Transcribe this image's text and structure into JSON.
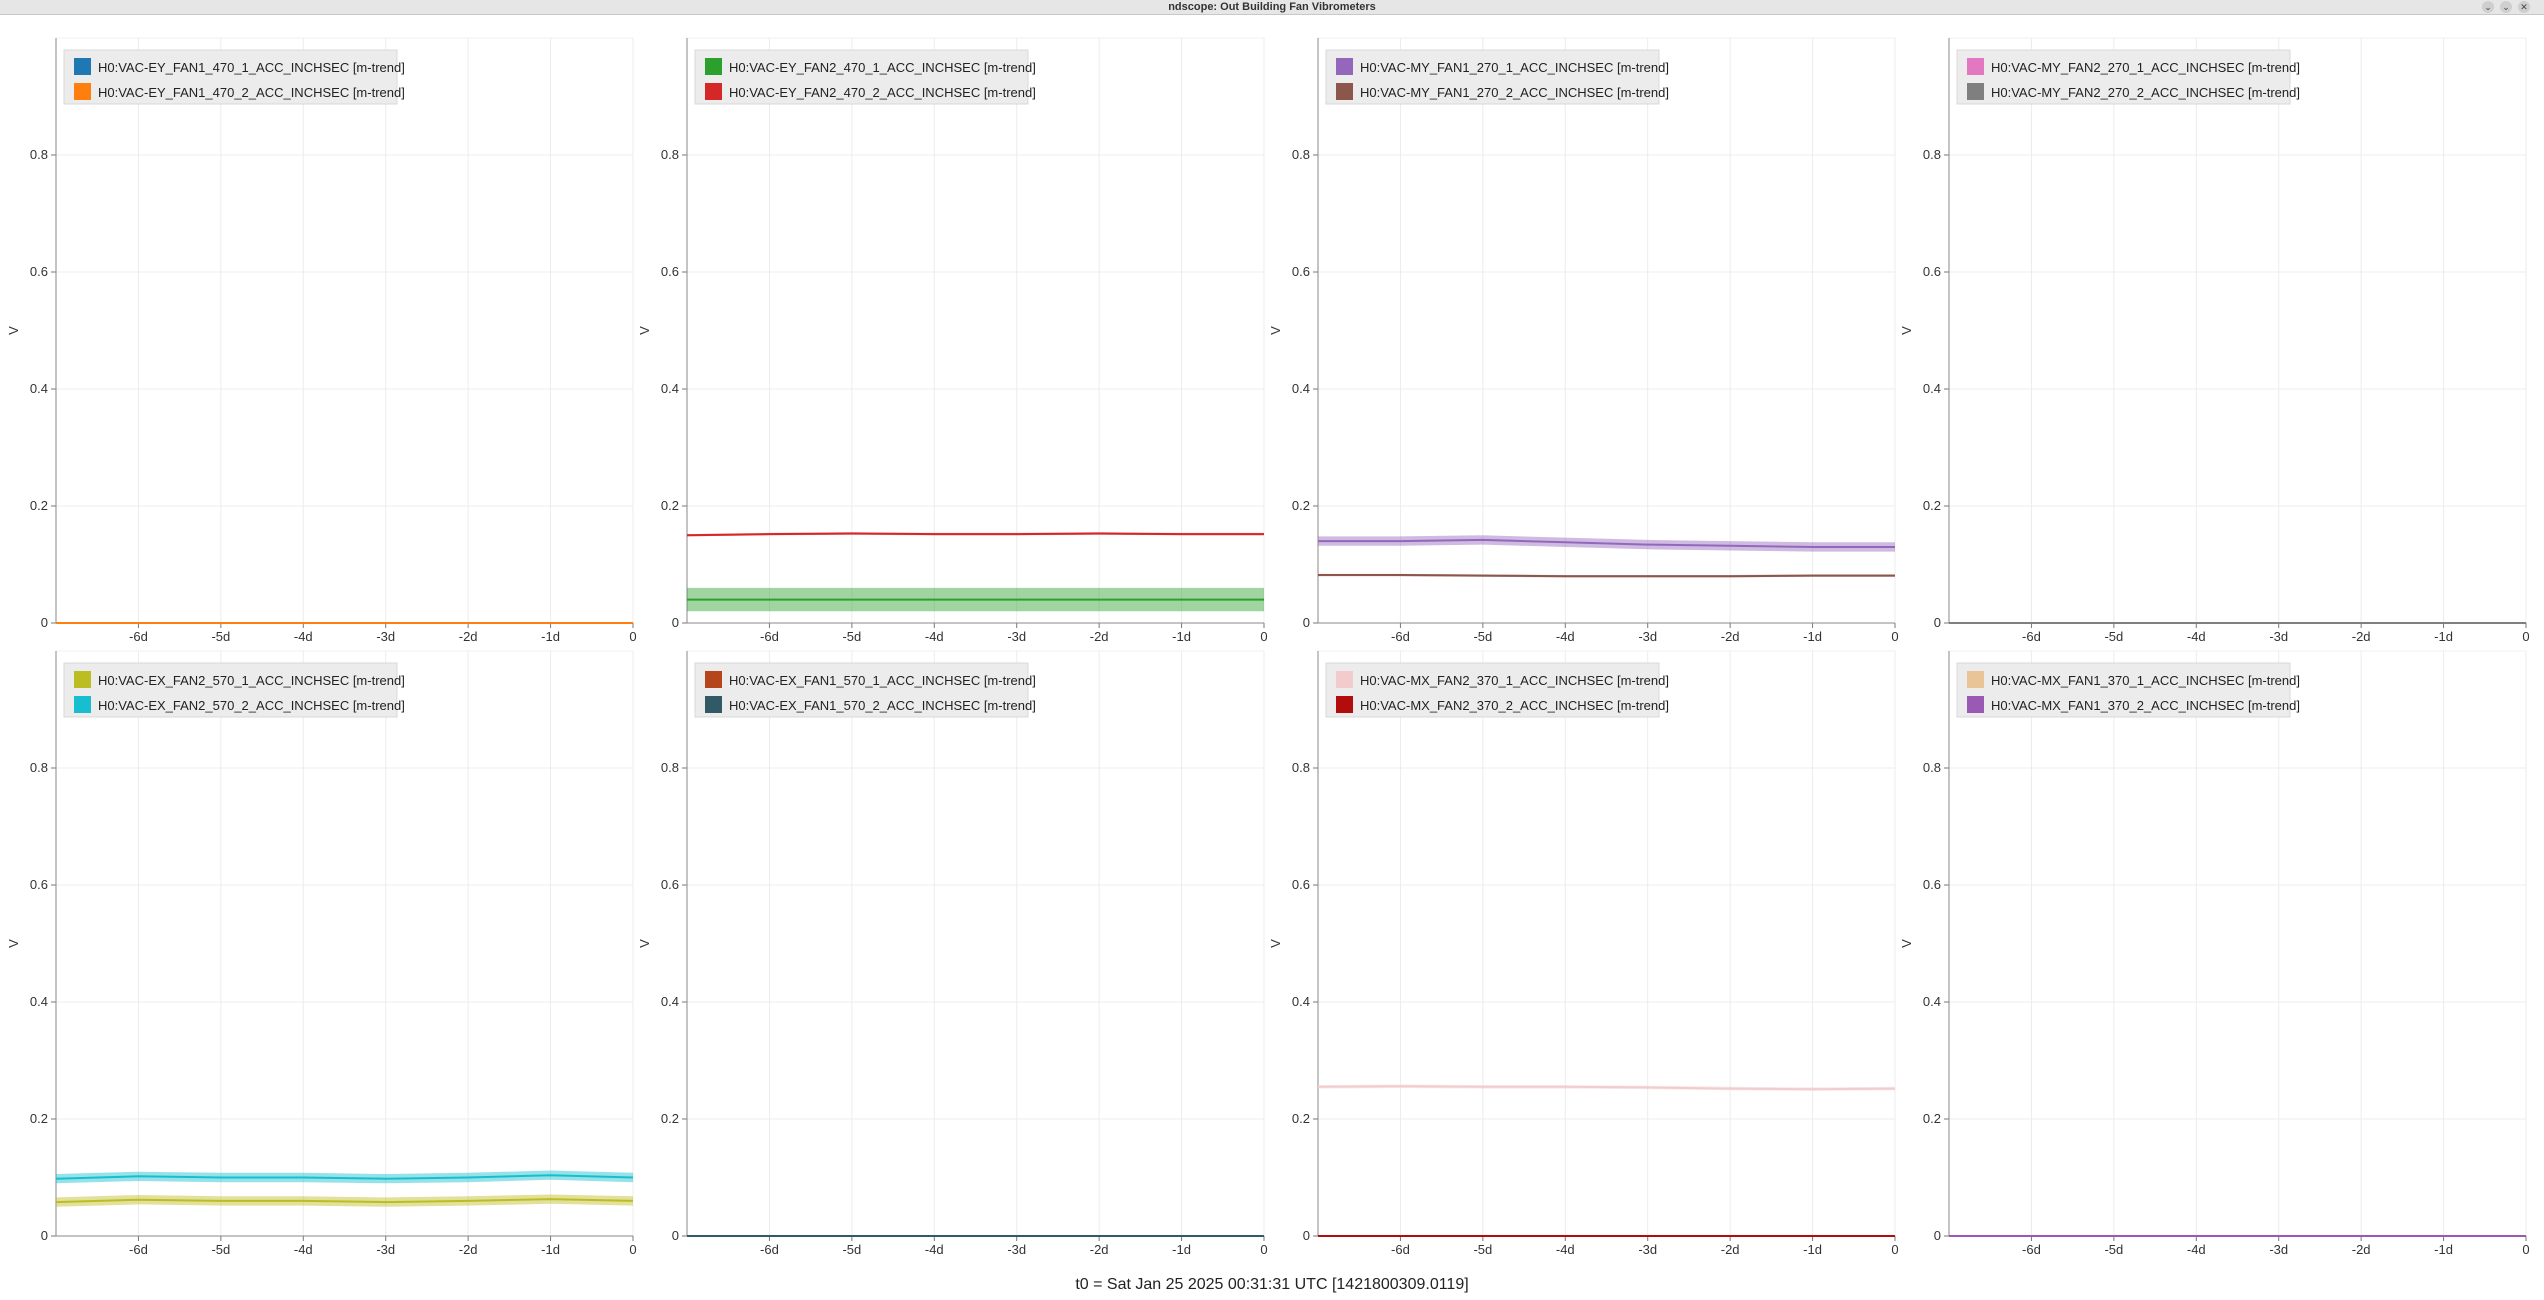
{
  "window": {
    "title": "ndscope: Out Building Fan Vibrometers",
    "minimize_glyph": "⌄",
    "close_glyph": "✕"
  },
  "footer": {
    "t0": "t0 = Sat Jan 25 2025 00:31:31 UTC [1421800309.0119]"
  },
  "chart_data": [
    {
      "type": "line",
      "ylabel": "V",
      "ylim": [
        0,
        1
      ],
      "xlim": [
        -7,
        0
      ],
      "xticks": [
        "-6d",
        "-5d",
        "-4d",
        "-3d",
        "-2d",
        "-1d",
        "0"
      ],
      "yticks": [
        "0",
        "0.2",
        "0.4",
        "0.6",
        "0.8"
      ],
      "grid": true,
      "legend": "top-left",
      "series": [
        {
          "name": "H0:VAC-EY_FAN1_470_1_ACC_INCHSEC [m-trend]",
          "color": "#1f77b4",
          "values": [
            0.0,
            0.0,
            0.0,
            0.0,
            0.0,
            0.0,
            0.0,
            0.0
          ],
          "band": 0.0
        },
        {
          "name": "H0:VAC-EY_FAN1_470_2_ACC_INCHSEC [m-trend]",
          "color": "#ff7f0e",
          "values": [
            0.0,
            0.0,
            0.0,
            0.0,
            0.0,
            0.0,
            0.0,
            0.0
          ],
          "band": 0.0
        }
      ]
    },
    {
      "type": "line",
      "ylabel": "V",
      "ylim": [
        0,
        1
      ],
      "xlim": [
        -7,
        0
      ],
      "xticks": [
        "-6d",
        "-5d",
        "-4d",
        "-3d",
        "-2d",
        "-1d",
        "0"
      ],
      "yticks": [
        "0",
        "0.2",
        "0.4",
        "0.6",
        "0.8"
      ],
      "grid": true,
      "legend": "top-left",
      "series": [
        {
          "name": "H0:VAC-EY_FAN2_470_1_ACC_INCHSEC [m-trend]",
          "color": "#2ca02c",
          "values": [
            0.04,
            0.04,
            0.04,
            0.04,
            0.04,
            0.04,
            0.04,
            0.04
          ],
          "band": 0.02
        },
        {
          "name": "H0:VAC-EY_FAN2_470_2_ACC_INCHSEC [m-trend]",
          "color": "#d62728",
          "values": [
            0.15,
            0.152,
            0.153,
            0.152,
            0.152,
            0.153,
            0.152,
            0.152
          ],
          "band": 0.002
        }
      ]
    },
    {
      "type": "line",
      "ylabel": "V",
      "ylim": [
        0,
        1
      ],
      "xlim": [
        -7,
        0
      ],
      "xticks": [
        "-6d",
        "-5d",
        "-4d",
        "-3d",
        "-2d",
        "-1d",
        "0"
      ],
      "yticks": [
        "0",
        "0.2",
        "0.4",
        "0.6",
        "0.8"
      ],
      "grid": true,
      "legend": "top-left",
      "series": [
        {
          "name": "H0:VAC-MY_FAN1_270_1_ACC_INCHSEC [m-trend]",
          "color": "#9467bd",
          "values": [
            0.14,
            0.14,
            0.142,
            0.138,
            0.134,
            0.132,
            0.13,
            0.13
          ],
          "band": 0.008
        },
        {
          "name": "H0:VAC-MY_FAN1_270_2_ACC_INCHSEC [m-trend]",
          "color": "#8c564b",
          "values": [
            0.082,
            0.082,
            0.081,
            0.08,
            0.08,
            0.08,
            0.081,
            0.081
          ],
          "band": 0.002
        }
      ]
    },
    {
      "type": "line",
      "ylabel": "V",
      "ylim": [
        0,
        1
      ],
      "xlim": [
        -7,
        0
      ],
      "xticks": [
        "-6d",
        "-5d",
        "-4d",
        "-3d",
        "-2d",
        "-1d",
        "0"
      ],
      "yticks": [
        "0",
        "0.2",
        "0.4",
        "0.6",
        "0.8"
      ],
      "grid": true,
      "legend": "top-left",
      "series": [
        {
          "name": "H0:VAC-MY_FAN2_270_1_ACC_INCHSEC [m-trend]",
          "color": "#e377c2",
          "values": [
            0.0,
            0.0,
            0.0,
            0.0,
            0.0,
            0.0,
            0.0,
            0.0
          ],
          "band": 0.0
        },
        {
          "name": "H0:VAC-MY_FAN2_270_2_ACC_INCHSEC [m-trend]",
          "color": "#7f7f7f",
          "values": [
            0.0,
            0.0,
            0.0,
            0.0,
            0.0,
            0.0,
            0.0,
            0.0
          ],
          "band": 0.0
        }
      ]
    },
    {
      "type": "line",
      "ylabel": "V",
      "ylim": [
        0,
        1
      ],
      "xlim": [
        -7,
        0
      ],
      "xticks": [
        "-6d",
        "-5d",
        "-4d",
        "-3d",
        "-2d",
        "-1d",
        "0"
      ],
      "yticks": [
        "0",
        "0.2",
        "0.4",
        "0.6",
        "0.8"
      ],
      "grid": true,
      "legend": "top-left",
      "series": [
        {
          "name": "H0:VAC-EX_FAN2_570_1_ACC_INCHSEC [m-trend]",
          "color": "#bcbd22",
          "values": [
            0.058,
            0.062,
            0.06,
            0.06,
            0.058,
            0.06,
            0.063,
            0.06
          ],
          "band": 0.008
        },
        {
          "name": "H0:VAC-EX_FAN2_570_2_ACC_INCHSEC [m-trend]",
          "color": "#17becf",
          "values": [
            0.098,
            0.102,
            0.1,
            0.1,
            0.098,
            0.1,
            0.104,
            0.1
          ],
          "band": 0.008
        }
      ]
    },
    {
      "type": "line",
      "ylabel": "V",
      "ylim": [
        0,
        1
      ],
      "xlim": [
        -7,
        0
      ],
      "xticks": [
        "-6d",
        "-5d",
        "-4d",
        "-3d",
        "-2d",
        "-1d",
        "0"
      ],
      "yticks": [
        "0",
        "0.2",
        "0.4",
        "0.6",
        "0.8"
      ],
      "grid": true,
      "legend": "top-left",
      "series": [
        {
          "name": "H0:VAC-EX_FAN1_570_1_ACC_INCHSEC [m-trend]",
          "color": "#b5451b",
          "values": [
            0.0,
            0.0,
            0.0,
            0.0,
            0.0,
            0.0,
            0.0,
            0.0
          ],
          "band": 0.0
        },
        {
          "name": "H0:VAC-EX_FAN1_570_2_ACC_INCHSEC [m-trend]",
          "color": "#325a66",
          "values": [
            0.0,
            0.0,
            0.0,
            0.0,
            0.0,
            0.0,
            0.0,
            0.0
          ],
          "band": 0.0
        }
      ]
    },
    {
      "type": "line",
      "ylabel": "V",
      "ylim": [
        0,
        1
      ],
      "xlim": [
        -7,
        0
      ],
      "xticks": [
        "-6d",
        "-5d",
        "-4d",
        "-3d",
        "-2d",
        "-1d",
        "0"
      ],
      "yticks": [
        "0",
        "0.2",
        "0.4",
        "0.6",
        "0.8"
      ],
      "grid": true,
      "legend": "top-left",
      "series": [
        {
          "name": "H0:VAC-MX_FAN2_370_1_ACC_INCHSEC [m-trend]",
          "color": "#f2cccc",
          "values": [
            0.255,
            0.256,
            0.255,
            0.255,
            0.254,
            0.252,
            0.251,
            0.252
          ],
          "band": 0.003
        },
        {
          "name": "H0:VAC-MX_FAN2_370_2_ACC_INCHSEC [m-trend]",
          "color": "#b20c0c",
          "values": [
            0.0,
            0.0,
            0.0,
            0.0,
            0.0,
            0.0,
            0.0,
            0.0
          ],
          "band": 0.0
        }
      ]
    },
    {
      "type": "line",
      "ylabel": "V",
      "ylim": [
        0,
        1
      ],
      "xlim": [
        -7,
        0
      ],
      "xticks": [
        "-6d",
        "-5d",
        "-4d",
        "-3d",
        "-2d",
        "-1d",
        "0"
      ],
      "yticks": [
        "0",
        "0.2",
        "0.4",
        "0.6",
        "0.8"
      ],
      "grid": true,
      "legend": "top-left",
      "series": [
        {
          "name": "H0:VAC-MX_FAN1_370_1_ACC_INCHSEC [m-trend]",
          "color": "#e8c497",
          "values": [
            0.0,
            0.0,
            0.0,
            0.0,
            0.0,
            0.0,
            0.0,
            0.0
          ],
          "band": 0.0
        },
        {
          "name": "H0:VAC-MX_FAN1_370_2_ACC_INCHSEC [m-trend]",
          "color": "#9b59b6",
          "values": [
            0.0,
            0.0,
            0.0,
            0.0,
            0.0,
            0.0,
            0.0,
            0.0
          ],
          "band": 0.0
        }
      ]
    }
  ]
}
